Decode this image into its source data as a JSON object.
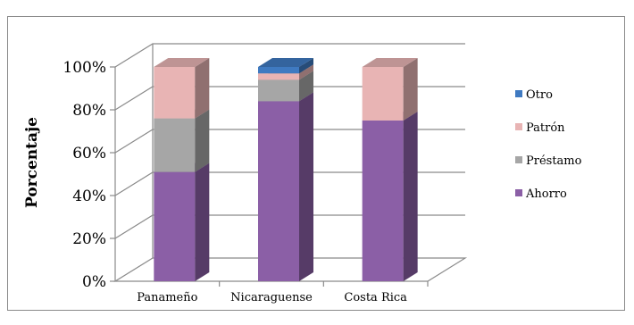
{
  "chart_data": {
    "type": "bar",
    "stacked": true,
    "three_d": true,
    "ylabel": "Porcentaje",
    "xlabel": "",
    "title": "",
    "ylim": [
      0,
      100
    ],
    "ytick_format": "percent",
    "yticks": [
      "0%",
      "20%",
      "40%",
      "60%",
      "80%",
      "100%"
    ],
    "categories": [
      "Panameño",
      "Nicaraguense",
      "Costa Rica"
    ],
    "series": [
      {
        "name": "Ahorro",
        "color": "#8B5FA6",
        "values": [
          51,
          84,
          75
        ]
      },
      {
        "name": "Préstamo",
        "color": "#A6A6A6",
        "values": [
          25,
          10,
          0
        ]
      },
      {
        "name": "Patrón",
        "color": "#E8B4B4",
        "values": [
          24,
          3,
          25
        ]
      },
      {
        "name": "Otro",
        "color": "#3F7AC1",
        "values": [
          0,
          3,
          0
        ]
      }
    ],
    "legend_order": [
      "Otro",
      "Patrón",
      "Préstamo",
      "Ahorro"
    ],
    "legend_position": "right",
    "grid": true
  }
}
